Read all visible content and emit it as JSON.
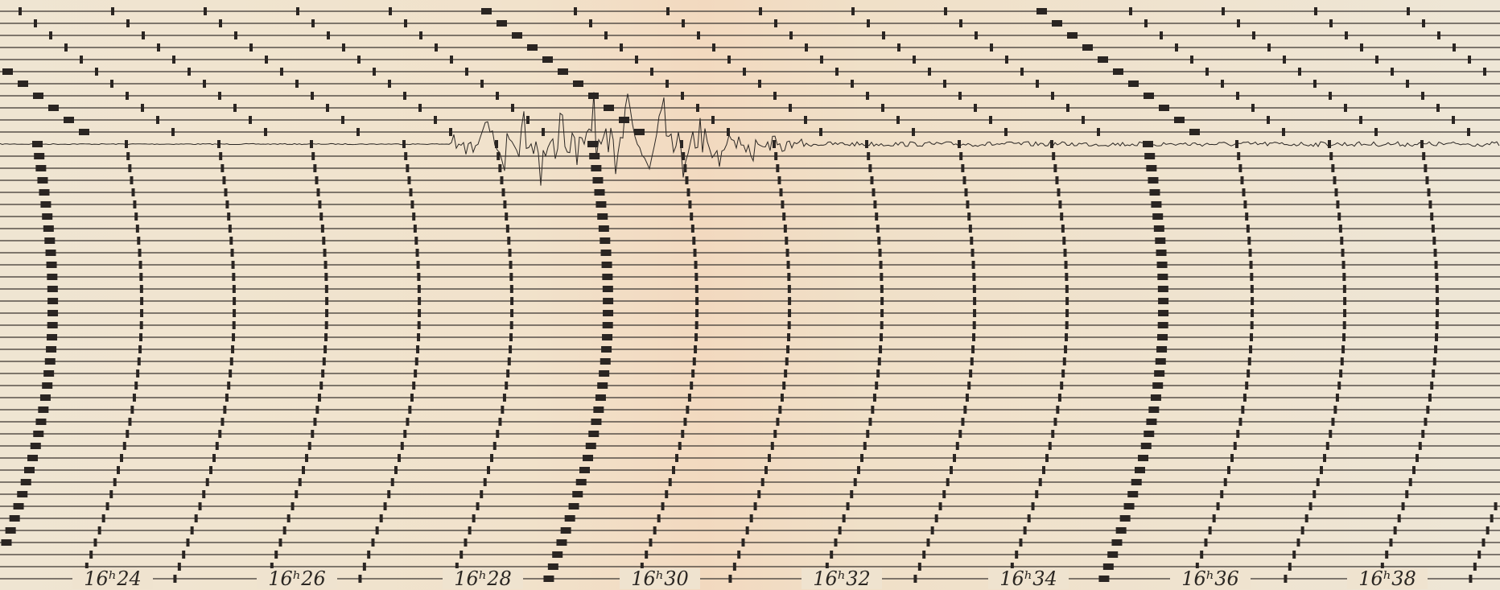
{
  "time_axis": {
    "labels": [
      "16ʰ24",
      "16ʰ26",
      "16ʰ28",
      "16ʰ30",
      "16ʰ32",
      "16ʰ34",
      "16ʰ36",
      "16ʰ38"
    ]
  }
}
